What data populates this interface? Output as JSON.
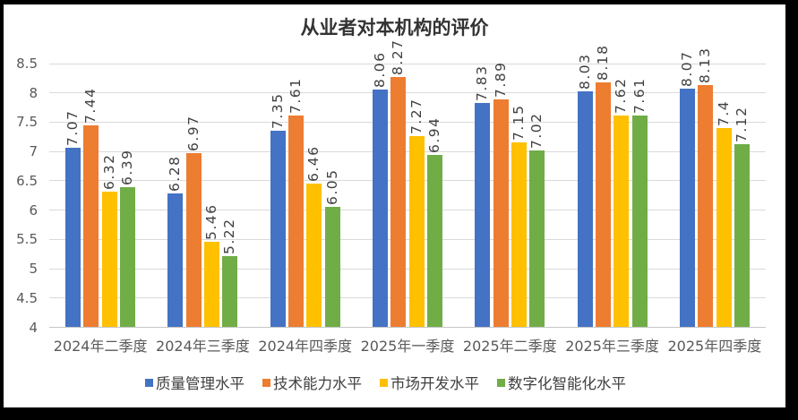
{
  "page": {
    "background": "#000000",
    "canvas_background": "#ffffff"
  },
  "chart_data": {
    "type": "bar",
    "title": "从业者对本机构的评价",
    "categories": [
      "2024年二季度",
      "2024年三季度",
      "2024年四季度",
      "2025年一季度",
      "2025年二季度",
      "2025年三季度",
      "2025年四季度"
    ],
    "series": [
      {
        "name": "质量管理水平",
        "color": "#4472C4",
        "values": [
          7.07,
          6.28,
          7.35,
          8.06,
          7.83,
          8.03,
          8.07
        ]
      },
      {
        "name": "技术能力水平",
        "color": "#ED7D31",
        "values": [
          7.44,
          6.97,
          7.61,
          8.27,
          7.89,
          8.18,
          8.13
        ]
      },
      {
        "name": "市场开发水平",
        "color": "#FFC000",
        "values": [
          6.32,
          5.46,
          6.46,
          7.27,
          7.15,
          7.62,
          7.4
        ]
      },
      {
        "name": "数字化智能化水平",
        "color": "#70AD47",
        "values": [
          6.39,
          5.22,
          6.05,
          6.94,
          7.02,
          7.61,
          7.12
        ]
      }
    ],
    "ylim": [
      4,
      8.5
    ],
    "ytick_step": 0.5,
    "yticks": [
      "4",
      "4.5",
      "5",
      "5.5",
      "6",
      "6.5",
      "7",
      "7.5",
      "8",
      "8.5"
    ],
    "grid": true,
    "legend_position": "bottom",
    "value_labels": "rotated-vertical"
  }
}
